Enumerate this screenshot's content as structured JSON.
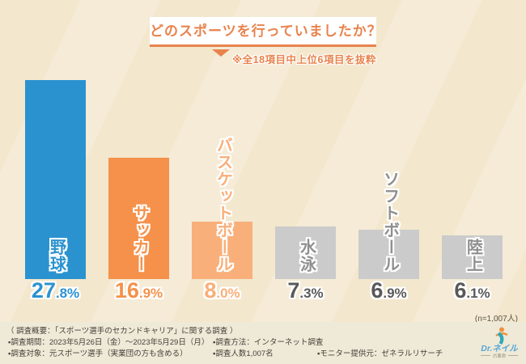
{
  "header": {
    "title": "どのスポーツを行っていましたか？",
    "note": "※全18項目中上位6項目を抜粋"
  },
  "chart_data": {
    "type": "bar",
    "title": "どのスポーツを行っていましたか？",
    "subtitle": "※全18項目中上位6項目を抜粋",
    "categories": [
      "野球",
      "サッカー",
      "バスケットボール",
      "水泳",
      "ソフトボール",
      "陸上"
    ],
    "values": [
      27.8,
      16.9,
      8.0,
      7.3,
      6.9,
      6.1
    ],
    "value_labels": [
      "27.8%",
      "16.9%",
      "8.0%",
      "7.3%",
      "6.9%",
      "6.1%"
    ],
    "bar_colors": [
      "#2b92d0",
      "#f5914a",
      "#f9af79",
      "#cbcbcb",
      "#cbcbcb",
      "#cbcbcb"
    ],
    "label_colors": [
      "#2b92d0",
      "#f5914a",
      "#f9af79",
      "#8f8f8f",
      "#8f8f8f",
      "#8f8f8f"
    ],
    "value_colors": [
      "#2b92d0",
      "#f5914a",
      "#f9af79",
      "#595959",
      "#595959",
      "#595959"
    ],
    "ylim": [
      0,
      30
    ],
    "xlabel": "",
    "ylabel": "",
    "grid": false,
    "legend": false,
    "sample_note": "(n=1,007人)"
  },
  "footer": {
    "summary": "（ 調査概要：「スポーツ選手のセカンドキャリア」に関する調査 ）",
    "period": "▪調査期間：2023年5月26日（金）～2023年5月29日（月）",
    "method": "▪調査方法：インターネット調査",
    "target": "▪調査対象：元スポーツ選手（実業団の方も含める）",
    "count": "▪調査人数1,007名",
    "monitor": "▪モニター提供元：ゼネラルリサーチ"
  },
  "logo": {
    "brand": "Dr.ネイル",
    "sub": "爪革命"
  },
  "colors": {
    "accent_orange": "#e8834d",
    "background": "#f3e7cd",
    "footer_background": "#efe9d7"
  }
}
